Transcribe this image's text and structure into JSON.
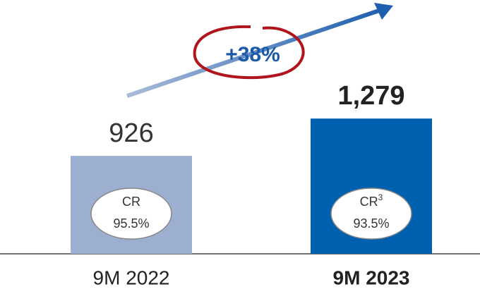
{
  "chart_data": {
    "type": "bar",
    "categories": [
      "9M 2022",
      "9M 2023"
    ],
    "values": [
      926,
      1279
    ],
    "value_labels": [
      "926",
      "1,279"
    ],
    "colors": [
      "#9dafd0",
      "#0060b0"
    ],
    "ylim": [
      0,
      2400
    ],
    "growth_annotation": "+38%",
    "ratios": [
      {
        "label": "CR",
        "value": "95.5%"
      },
      {
        "label": "CR",
        "footnote": "3",
        "value": "93.5%"
      }
    ]
  }
}
